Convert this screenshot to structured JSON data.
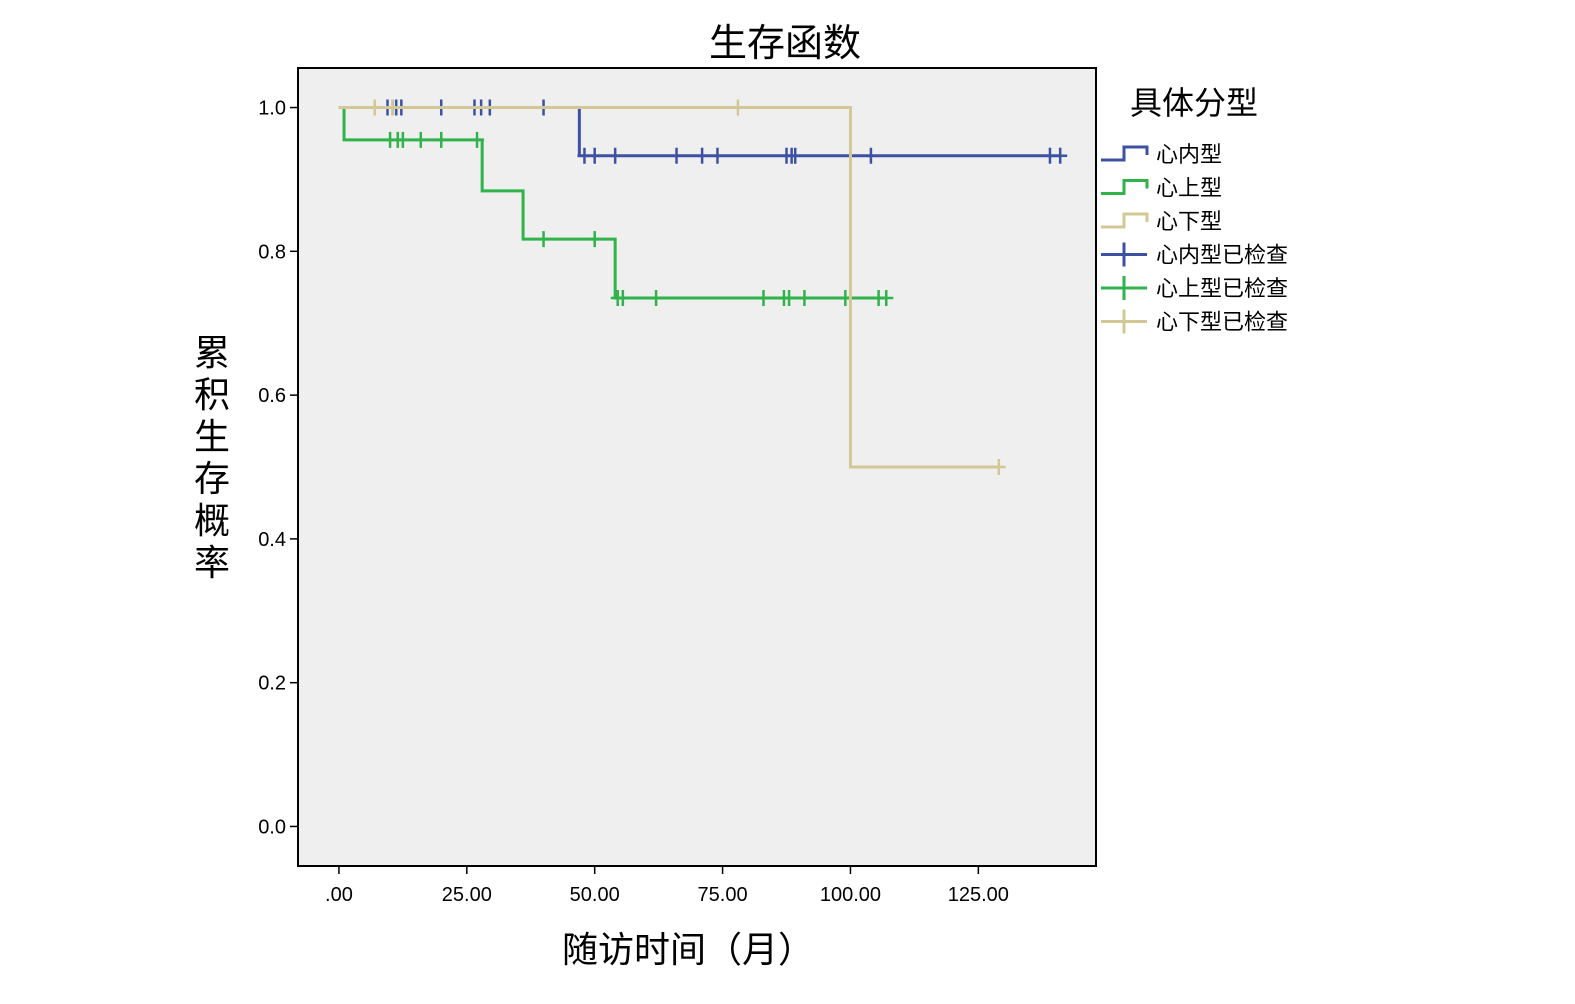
{
  "chart_data": {
    "type": "line",
    "title": "生存函数",
    "xlabel": "随访时间（月）",
    "ylabel": "累积生存概率",
    "xlim": [
      -8,
      148
    ],
    "ylim": [
      -0.055,
      1.055
    ],
    "x_ticks": [
      0,
      25,
      50,
      75,
      100,
      125
    ],
    "x_tick_labels": [
      ".00",
      "25.00",
      "50.00",
      "75.00",
      "100.00",
      "125.00"
    ],
    "y_ticks": [
      0,
      0.2,
      0.4,
      0.6,
      0.8,
      1.0
    ],
    "y_tick_labels": [
      "0.0",
      "0.2",
      "0.4",
      "0.6",
      "0.8",
      "1.0"
    ],
    "legend_title": "具体分型",
    "legend_position": "right",
    "plot_background": "#efefef",
    "series": [
      {
        "name": "心内型",
        "censored_name": "心内型已检查",
        "color": "#3d51a4",
        "steps": [
          [
            0,
            1.0
          ],
          [
            47,
            0.933
          ],
          [
            141,
            0.933
          ]
        ],
        "censored": [
          {
            "x": 9.5,
            "y": 1.0
          },
          {
            "x": 10.5,
            "y": 1.0
          },
          {
            "x": 11.2,
            "y": 1.0
          },
          {
            "x": 12.2,
            "y": 1.0
          },
          {
            "x": 20,
            "y": 1.0
          },
          {
            "x": 26.5,
            "y": 1.0
          },
          {
            "x": 27.8,
            "y": 1.0
          },
          {
            "x": 29.5,
            "y": 1.0
          },
          {
            "x": 40,
            "y": 1.0
          },
          {
            "x": 48,
            "y": 0.933
          },
          {
            "x": 50,
            "y": 0.933
          },
          {
            "x": 54,
            "y": 0.933
          },
          {
            "x": 66,
            "y": 0.933
          },
          {
            "x": 71,
            "y": 0.933
          },
          {
            "x": 74,
            "y": 0.933
          },
          {
            "x": 87.5,
            "y": 0.933
          },
          {
            "x": 88.5,
            "y": 0.933
          },
          {
            "x": 89.2,
            "y": 0.933
          },
          {
            "x": 104,
            "y": 0.933
          },
          {
            "x": 139,
            "y": 0.933
          },
          {
            "x": 141,
            "y": 0.933
          }
        ]
      },
      {
        "name": "心上型",
        "censored_name": "心上型已检查",
        "color": "#2fb34a",
        "steps": [
          [
            0,
            1.0
          ],
          [
            1,
            0.955
          ],
          [
            28,
            0.884
          ],
          [
            36,
            0.817
          ],
          [
            54,
            0.735
          ],
          [
            107,
            0.735
          ]
        ],
        "censored": [
          {
            "x": 10,
            "y": 0.955
          },
          {
            "x": 11.5,
            "y": 0.955
          },
          {
            "x": 12.5,
            "y": 0.955
          },
          {
            "x": 16,
            "y": 0.955
          },
          {
            "x": 20,
            "y": 0.955
          },
          {
            "x": 27,
            "y": 0.955
          },
          {
            "x": 40,
            "y": 0.817
          },
          {
            "x": 50,
            "y": 0.817
          },
          {
            "x": 54.5,
            "y": 0.735
          },
          {
            "x": 55.5,
            "y": 0.735
          },
          {
            "x": 62,
            "y": 0.735
          },
          {
            "x": 83,
            "y": 0.735
          },
          {
            "x": 87,
            "y": 0.735
          },
          {
            "x": 88,
            "y": 0.735
          },
          {
            "x": 91,
            "y": 0.735
          },
          {
            "x": 99,
            "y": 0.735
          },
          {
            "x": 105.5,
            "y": 0.735
          },
          {
            "x": 107,
            "y": 0.735
          }
        ]
      },
      {
        "name": "心下型",
        "censored_name": "心下型已检查",
        "color": "#d2c896",
        "steps": [
          [
            0,
            1.0
          ],
          [
            100,
            0.5
          ],
          [
            129,
            0.5
          ]
        ],
        "censored": [
          {
            "x": 7,
            "y": 1.0
          },
          {
            "x": 10.5,
            "y": 1.0
          },
          {
            "x": 78,
            "y": 1.0
          },
          {
            "x": 129,
            "y": 0.5
          }
        ]
      }
    ]
  }
}
